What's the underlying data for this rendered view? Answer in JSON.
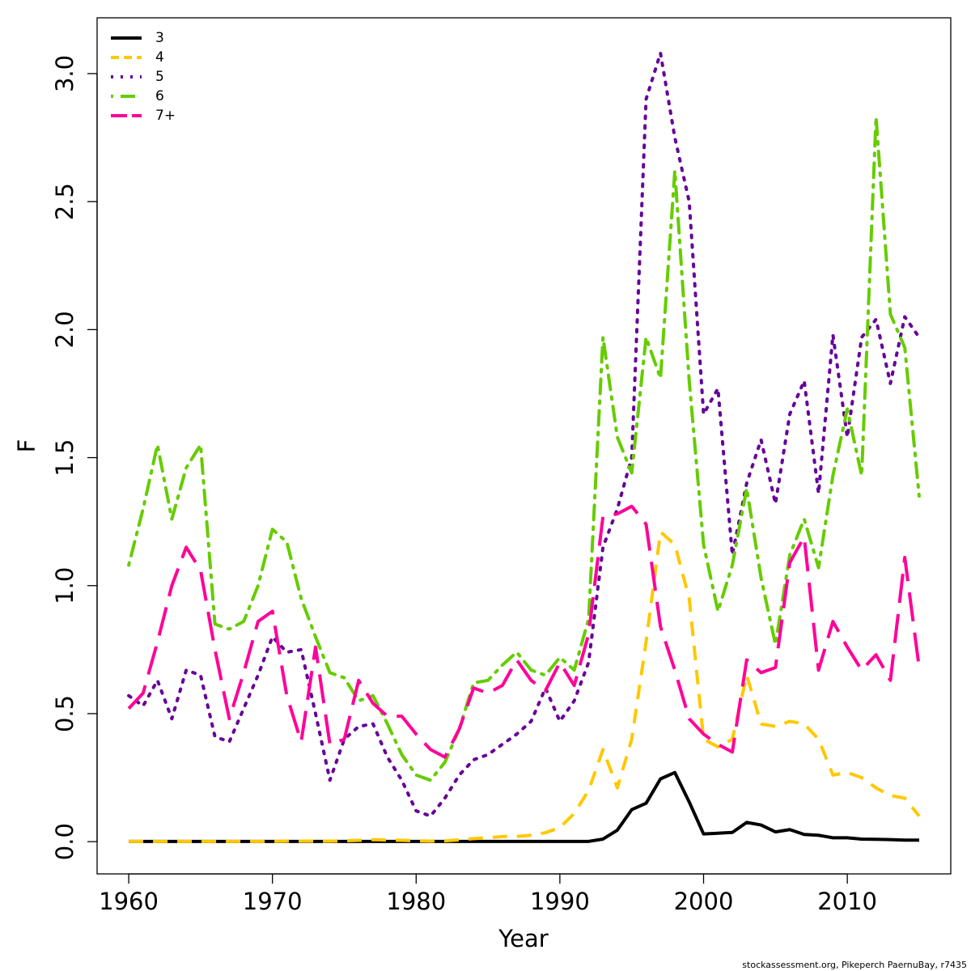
{
  "chart_data": {
    "type": "line",
    "x_label": "Year",
    "y_label": "F",
    "caption": "stockassessment.org, Pikeperch PaernuBay, r7435",
    "x": [
      1960,
      1961,
      1962,
      1963,
      1964,
      1965,
      1966,
      1967,
      1968,
      1969,
      1970,
      1971,
      1972,
      1973,
      1974,
      1975,
      1976,
      1977,
      1978,
      1979,
      1980,
      1981,
      1982,
      1983,
      1984,
      1985,
      1986,
      1987,
      1988,
      1989,
      1990,
      1991,
      1992,
      1993,
      1994,
      1995,
      1996,
      1997,
      1998,
      1999,
      2000,
      2001,
      2002,
      2003,
      2004,
      2005,
      2006,
      2007,
      2008,
      2009,
      2010,
      2011,
      2012,
      2013,
      2014,
      2015
    ],
    "xlim": [
      1957.8,
      2017.2
    ],
    "xticks": [
      1960,
      1970,
      1980,
      1990,
      2000,
      2010
    ],
    "ylim": [
      -0.126,
      3.218
    ],
    "yticks": [
      {
        "value": 0,
        "label": "0.0"
      },
      0.5,
      {
        "value": 1,
        "label": "1.0"
      },
      1.5,
      {
        "value": 2,
        "label": "2.0"
      },
      2.5,
      {
        "value": 3,
        "label": "3.0"
      }
    ],
    "grid": false,
    "legend": "top-left",
    "series": [
      {
        "name": "3",
        "color": "#000000",
        "dash": "solid",
        "values": [
          0.001,
          0.001,
          0.001,
          0.001,
          0.001,
          0.001,
          0.001,
          0.001,
          0.001,
          0.001,
          0.001,
          0.001,
          0.001,
          0.001,
          0.001,
          0.001,
          0.001,
          0.001,
          0.001,
          0.001,
          0.001,
          0.001,
          0.001,
          0.001,
          0.001,
          0.001,
          0.001,
          0.001,
          0.001,
          0.001,
          0.001,
          0.001,
          0.001,
          0.01,
          0.045,
          0.125,
          0.15,
          0.245,
          0.27,
          0.155,
          0.03,
          0.033,
          0.036,
          0.075,
          0.065,
          0.038,
          0.047,
          0.028,
          0.025,
          0.015,
          0.015,
          0.01,
          0.009,
          0.008,
          0.006,
          0.006
        ]
      },
      {
        "name": "4",
        "color": "#ffc800",
        "dash": "dashed",
        "values": [
          0.001,
          0.001,
          0.001,
          0.001,
          0.001,
          0.001,
          0.001,
          0.001,
          0.001,
          0.001,
          0.001,
          0.002,
          0.002,
          0.002,
          0.002,
          0.003,
          0.005,
          0.008,
          0.006,
          0.005,
          0.003,
          0.002,
          0.003,
          0.007,
          0.012,
          0.015,
          0.02,
          0.02,
          0.025,
          0.035,
          0.055,
          0.11,
          0.2,
          0.36,
          0.21,
          0.4,
          0.78,
          1.21,
          1.16,
          0.95,
          0.4,
          0.37,
          0.4,
          0.65,
          0.46,
          0.45,
          0.47,
          0.46,
          0.4,
          0.26,
          0.27,
          0.25,
          0.21,
          0.18,
          0.17,
          0.1
        ]
      },
      {
        "name": "5",
        "color": "#660099",
        "dash": "dotted",
        "values": [
          0.57,
          0.53,
          0.63,
          0.48,
          0.67,
          0.65,
          0.41,
          0.39,
          0.52,
          0.65,
          0.8,
          0.74,
          0.75,
          0.5,
          0.24,
          0.4,
          0.45,
          0.46,
          0.33,
          0.24,
          0.12,
          0.1,
          0.17,
          0.26,
          0.32,
          0.34,
          0.38,
          0.42,
          0.47,
          0.6,
          0.47,
          0.55,
          0.7,
          1.15,
          1.3,
          1.5,
          2.9,
          3.08,
          2.75,
          2.5,
          1.67,
          1.77,
          1.12,
          1.4,
          1.57,
          1.32,
          1.67,
          1.8,
          1.36,
          1.98,
          1.58,
          1.97,
          2.04,
          1.79,
          2.05,
          1.97
        ]
      },
      {
        "name": "6",
        "color": "#66cc00",
        "dash": "dotdash",
        "values": [
          1.08,
          1.3,
          1.55,
          1.26,
          1.46,
          1.55,
          0.85,
          0.83,
          0.86,
          1.0,
          1.22,
          1.17,
          0.95,
          0.8,
          0.66,
          0.64,
          0.55,
          0.57,
          0.46,
          0.34,
          0.26,
          0.24,
          0.31,
          0.44,
          0.62,
          0.63,
          0.69,
          0.74,
          0.67,
          0.65,
          0.72,
          0.67,
          0.87,
          1.97,
          1.58,
          1.44,
          1.97,
          1.81,
          2.62,
          1.8,
          1.16,
          0.9,
          1.08,
          1.38,
          1.03,
          0.77,
          1.12,
          1.26,
          1.07,
          1.43,
          1.69,
          1.43,
          2.83,
          2.06,
          1.93,
          1.35
        ]
      },
      {
        "name": "7+",
        "color": "#ff0099",
        "dash": "longdash",
        "values": [
          0.52,
          0.58,
          0.78,
          1.0,
          1.15,
          1.06,
          0.75,
          0.48,
          0.66,
          0.86,
          0.9,
          0.57,
          0.39,
          0.76,
          0.38,
          0.4,
          0.63,
          0.54,
          0.49,
          0.49,
          0.42,
          0.36,
          0.33,
          0.44,
          0.6,
          0.58,
          0.61,
          0.71,
          0.63,
          0.59,
          0.7,
          0.61,
          0.81,
          1.27,
          1.28,
          1.31,
          1.24,
          0.84,
          0.67,
          0.48,
          0.42,
          0.38,
          0.35,
          0.71,
          0.66,
          0.68,
          1.09,
          1.19,
          0.67,
          0.86,
          0.76,
          0.67,
          0.73,
          0.63,
          1.11,
          0.68
        ]
      }
    ]
  }
}
